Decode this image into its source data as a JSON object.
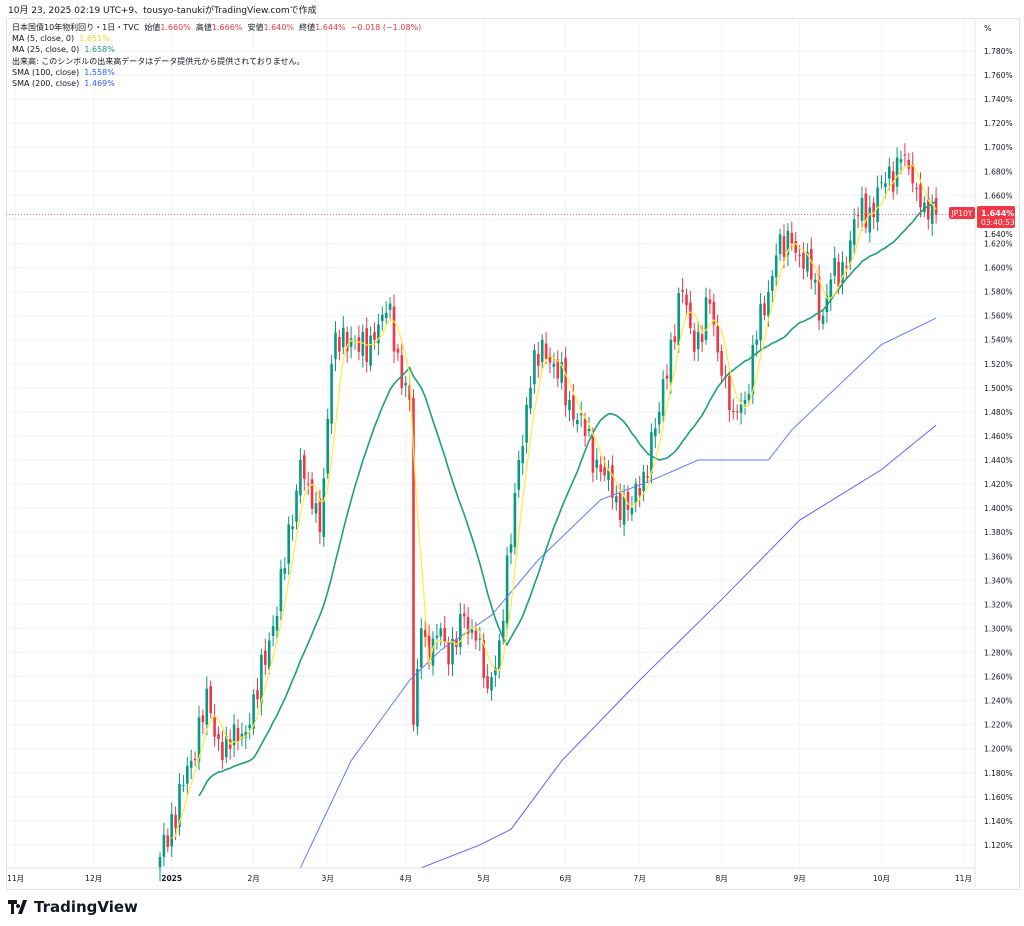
{
  "caption": "10月 23, 2025 02:19 UTC+9、tousyo-tanukiがTradingView.comで作成",
  "legend": {
    "symbol": "日本国債10年物利回り・1日・TVC",
    "open_label": "始値",
    "open": "1.660%",
    "high_label": "高値",
    "high": "1.666%",
    "low_label": "安値",
    "low": "1.640%",
    "close_label": "終値",
    "close": "1.644%",
    "change": "−0.018 (−1.08%)",
    "ma5_label": "MA (5, close, 0)",
    "ma5": "1.651%",
    "ma25_label": "MA (25, close, 0)",
    "ma25": "1.658%",
    "volume_note": "出来高: このシンボルの出来高データはデータ提供元から提供されておりません。",
    "sma100_label": "SMA (100, close)",
    "sma100": "1.558%",
    "sma200_label": "SMA (200, close)",
    "sma200": "1.469%"
  },
  "price_tag": {
    "symbol": "JP10Y",
    "value": "1.644%",
    "countdown": "03:40:53"
  },
  "axis_unit": "%",
  "logo": "TradingView",
  "colors": {
    "up": "#089981",
    "down": "#f23645",
    "ma5": "#ffeb3b",
    "ma25": "#1e9e7e",
    "sma100": "#5b7cff",
    "sma200": "#6b5bff"
  },
  "chart_data": {
    "type": "candlestick",
    "title": "日本国債10年物利回り・1日・TVC",
    "ylim": [
      1.1,
      1.79
    ],
    "yticks": [
      1.12,
      1.14,
      1.16,
      1.18,
      1.2,
      1.22,
      1.24,
      1.26,
      1.28,
      1.3,
      1.32,
      1.34,
      1.36,
      1.38,
      1.4,
      1.42,
      1.44,
      1.46,
      1.48,
      1.5,
      1.52,
      1.54,
      1.56,
      1.58,
      1.6,
      1.62,
      1.64,
      1.66,
      1.68,
      1.7,
      1.72,
      1.74,
      1.76,
      1.78
    ],
    "ytick_format": "%",
    "xticks": [
      {
        "label": "11月",
        "bar": -37
      },
      {
        "label": "12月",
        "bar": -17
      },
      {
        "label": "2025",
        "bar": 3
      },
      {
        "label": "2月",
        "bar": 24
      },
      {
        "label": "3月",
        "bar": 43
      },
      {
        "label": "4月",
        "bar": 63
      },
      {
        "label": "5月",
        "bar": 83
      },
      {
        "label": "6月",
        "bar": 104
      },
      {
        "label": "7月",
        "bar": 123
      },
      {
        "label": "8月",
        "bar": 144
      },
      {
        "label": "9月",
        "bar": 164
      },
      {
        "label": "10月",
        "bar": 185
      },
      {
        "label": "11月",
        "bar": 206
      }
    ],
    "close_keypoints": [
      [
        0,
        1.11
      ],
      [
        8,
        1.19
      ],
      [
        12,
        1.25
      ],
      [
        14,
        1.21
      ],
      [
        18,
        1.2
      ],
      [
        23,
        1.22
      ],
      [
        28,
        1.29
      ],
      [
        32,
        1.35
      ],
      [
        36,
        1.44
      ],
      [
        38,
        1.42
      ],
      [
        41,
        1.38
      ],
      [
        44,
        1.52
      ],
      [
        47,
        1.55
      ],
      [
        51,
        1.53
      ],
      [
        55,
        1.54
      ],
      [
        59,
        1.57
      ],
      [
        62,
        1.5
      ],
      [
        64,
        1.49
      ],
      [
        65,
        1.22
      ],
      [
        67,
        1.3
      ],
      [
        69,
        1.27
      ],
      [
        72,
        1.3
      ],
      [
        74,
        1.27
      ],
      [
        78,
        1.31
      ],
      [
        81,
        1.29
      ],
      [
        84,
        1.25
      ],
      [
        87,
        1.29
      ],
      [
        90,
        1.37
      ],
      [
        92,
        1.44
      ],
      [
        95,
        1.5
      ],
      [
        98,
        1.54
      ],
      [
        101,
        1.52
      ],
      [
        105,
        1.49
      ],
      [
        109,
        1.46
      ],
      [
        113,
        1.43
      ],
      [
        117,
        1.41
      ],
      [
        121,
        1.4
      ],
      [
        124,
        1.43
      ],
      [
        128,
        1.48
      ],
      [
        131,
        1.54
      ],
      [
        134,
        1.58
      ],
      [
        137,
        1.53
      ],
      [
        141,
        1.57
      ],
      [
        144,
        1.51
      ],
      [
        147,
        1.48
      ],
      [
        150,
        1.49
      ],
      [
        153,
        1.54
      ],
      [
        158,
        1.61
      ],
      [
        162,
        1.62
      ],
      [
        164,
        1.61
      ],
      [
        167,
        1.59
      ],
      [
        170,
        1.56
      ],
      [
        172,
        1.59
      ],
      [
        176,
        1.6
      ],
      [
        178,
        1.64
      ],
      [
        182,
        1.65
      ],
      [
        186,
        1.67
      ],
      [
        190,
        1.69
      ],
      [
        193,
        1.67
      ],
      [
        195,
        1.65
      ],
      [
        197,
        1.64
      ],
      [
        199,
        1.644
      ]
    ],
    "last_close": 1.644,
    "sma100": [
      [
        36,
        1.101
      ],
      [
        49,
        1.19
      ],
      [
        64,
        1.257
      ],
      [
        72,
        1.282
      ],
      [
        85,
        1.311
      ],
      [
        97,
        1.357
      ],
      [
        113,
        1.407
      ],
      [
        126,
        1.423
      ],
      [
        138,
        1.44
      ],
      [
        151,
        1.44
      ],
      [
        156,
        1.44
      ],
      [
        162,
        1.465
      ],
      [
        174,
        1.502
      ],
      [
        185,
        1.536
      ],
      [
        199,
        1.558
      ]
    ],
    "sma200": [
      [
        67,
        1.101
      ],
      [
        82,
        1.12
      ],
      [
        90,
        1.133
      ],
      [
        103,
        1.19
      ],
      [
        123,
        1.257
      ],
      [
        144,
        1.324
      ],
      [
        164,
        1.39
      ],
      [
        185,
        1.432
      ],
      [
        199,
        1.469
      ]
    ],
    "series": [
      {
        "name": "MA (5, close, 0)"
      },
      {
        "name": "MA (25, close, 0)"
      },
      {
        "name": "SMA (100, close)"
      },
      {
        "name": "SMA (200, close)"
      }
    ]
  }
}
